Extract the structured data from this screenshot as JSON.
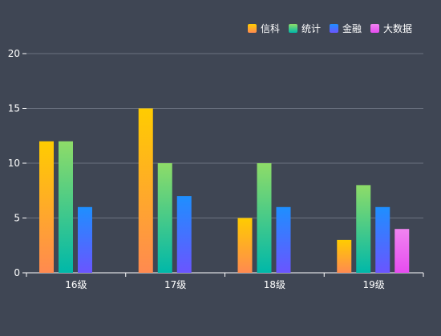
{
  "chart_data": {
    "type": "bar",
    "categories": [
      "16级",
      "17级",
      "18级",
      "19级"
    ],
    "series": [
      {
        "name": "信科",
        "values": [
          12,
          15,
          5,
          3
        ],
        "color_top": "#ffcc00",
        "color_bottom": "#ff8a50"
      },
      {
        "name": "统计",
        "values": [
          12,
          10,
          10,
          8
        ],
        "color_top": "#8edc68",
        "color_bottom": "#00b8a9"
      },
      {
        "name": "金融",
        "values": [
          6,
          7,
          6,
          6
        ],
        "color_top": "#1e8fff",
        "color_bottom": "#6a55ff"
      },
      {
        "name": "大数据",
        "values": [
          0,
          0,
          0,
          4
        ],
        "color_top": "#f084f0",
        "color_bottom": "#e64cf0"
      }
    ],
    "ylim": [
      0,
      20
    ],
    "yticks": [
      0,
      5,
      10,
      15,
      20
    ],
    "grid": true,
    "legend_position": "top-right",
    "colors": {
      "background": "#3f4654",
      "grid": "#6b7280",
      "axis": "#ffffff",
      "text": "#ffffff"
    }
  }
}
